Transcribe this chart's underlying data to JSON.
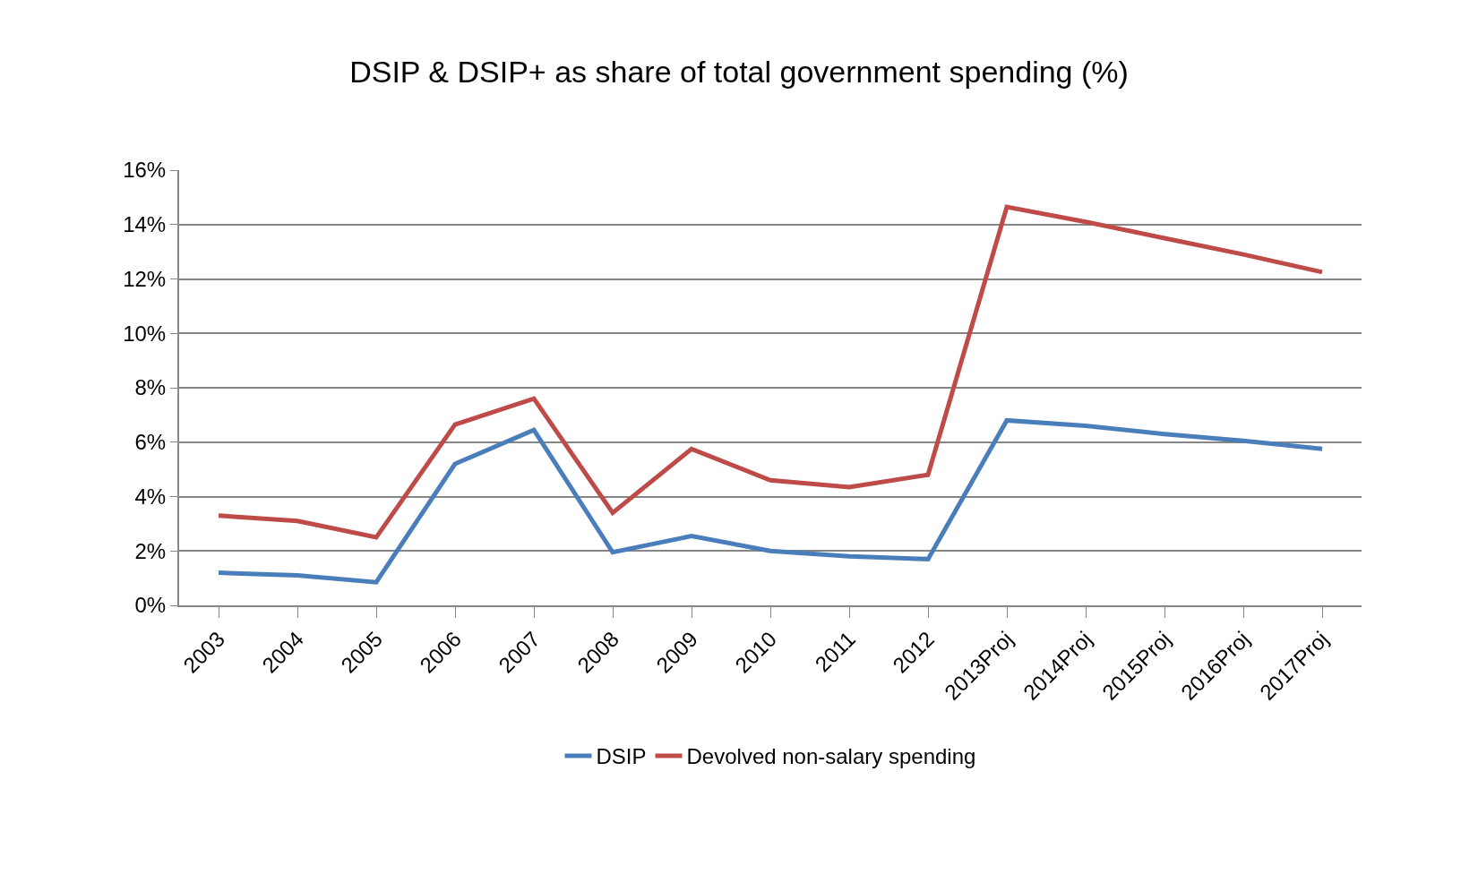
{
  "chart_data": {
    "type": "line",
    "title": "DSIP & DSIP+ as share of total government spending (%)",
    "categories": [
      "2003",
      "2004",
      "2005",
      "2006",
      "2007",
      "2008",
      "2009",
      "2010",
      "2011",
      "2012",
      "2013Proj",
      "2014Proj",
      "2015Proj",
      "2016Proj",
      "2017Proj"
    ],
    "series": [
      {
        "name": "DSIP",
        "color": "#4a7ebb",
        "values": [
          1.2,
          1.1,
          0.85,
          5.2,
          6.45,
          1.95,
          2.55,
          2.0,
          1.8,
          1.7,
          6.8,
          6.6,
          6.3,
          6.05,
          5.75
        ]
      },
      {
        "name": "Devolved non-salary spending",
        "color": "#be4b48",
        "values": [
          3.3,
          3.1,
          2.5,
          6.65,
          7.6,
          3.4,
          5.75,
          4.6,
          4.35,
          4.8,
          14.65,
          14.1,
          13.5,
          12.9,
          12.25
        ]
      }
    ],
    "ylim": [
      0,
      16
    ],
    "yticks": [
      {
        "value": 0,
        "label": "0%"
      },
      {
        "value": 2,
        "label": "2%"
      },
      {
        "value": 4,
        "label": "4%"
      },
      {
        "value": 6,
        "label": "6%"
      },
      {
        "value": 8,
        "label": "8%"
      },
      {
        "value": 10,
        "label": "10%"
      },
      {
        "value": 12,
        "label": "12%"
      },
      {
        "value": 14,
        "label": "14%"
      },
      {
        "value": 16,
        "label": "16%"
      }
    ],
    "grid": "y",
    "legend": "bottom",
    "marker": "none",
    "line_style": "solid"
  }
}
